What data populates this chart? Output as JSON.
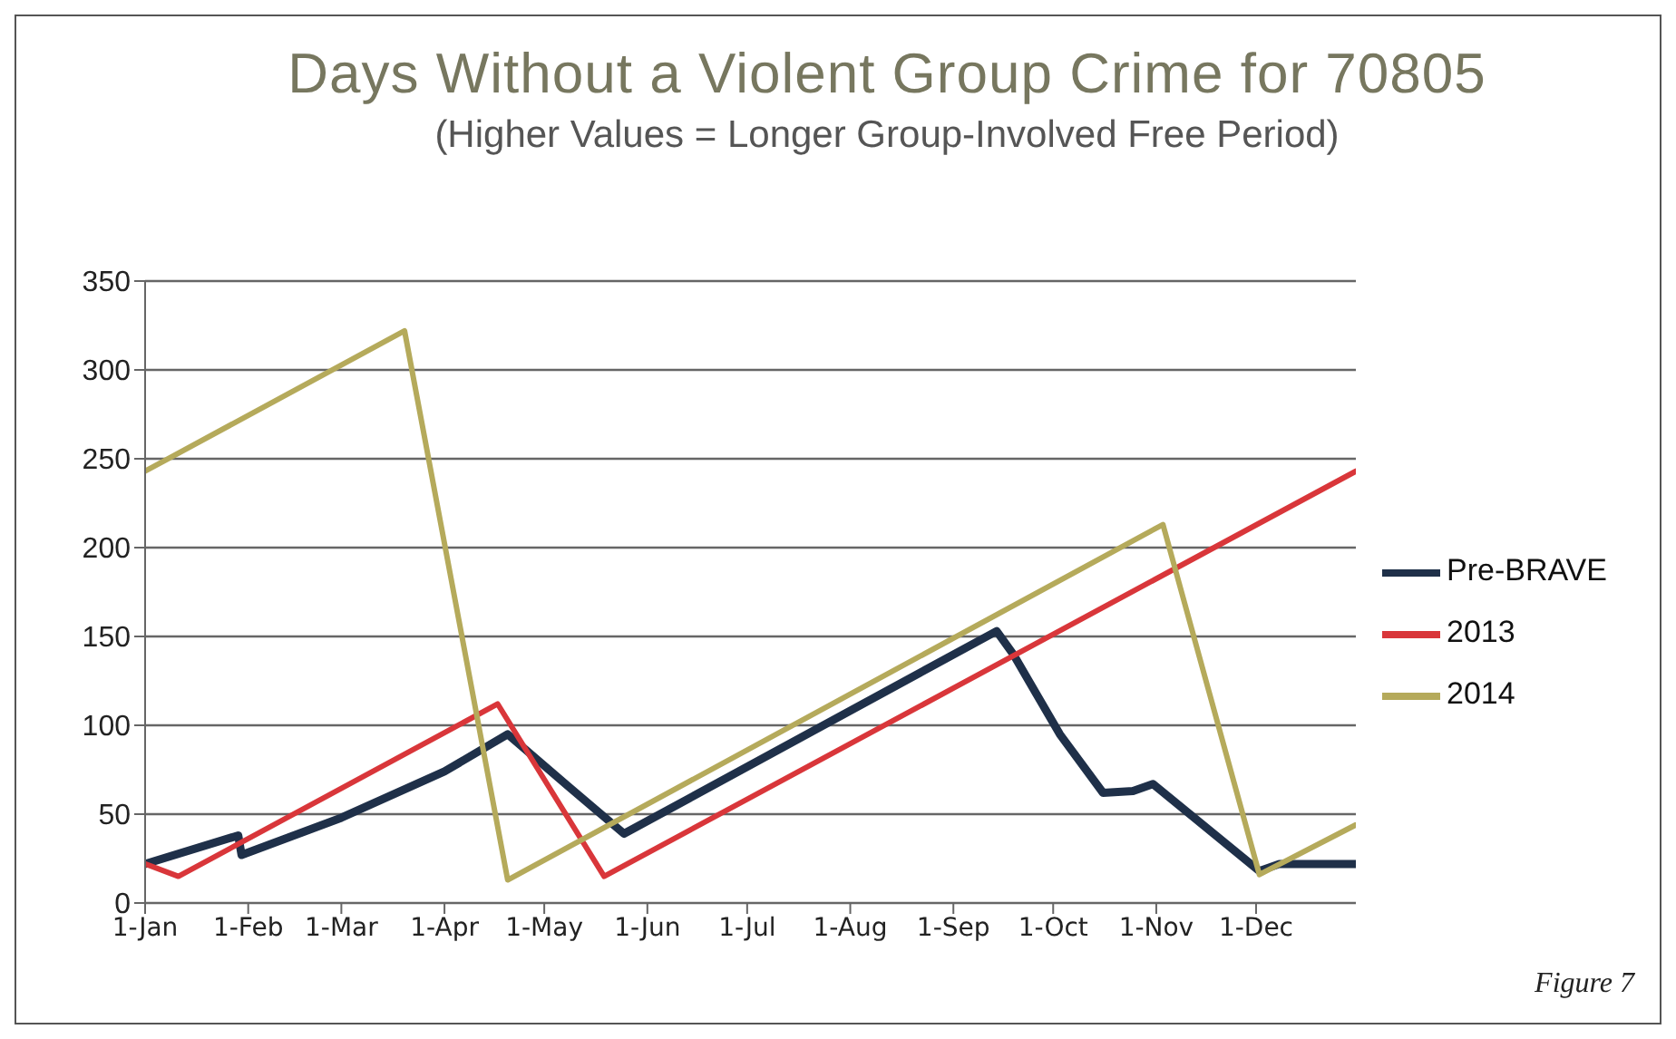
{
  "chart_data": {
    "type": "line",
    "title": "Days Without a Violent Group Crime for 70805",
    "subtitle": "(Higher Values = Longer Group-Involved Free Period)",
    "annotations": [
      "Figure 7"
    ],
    "xlim": [
      "--01-01",
      "--12-31"
    ],
    "xticks": [
      {
        "value": "--01-01",
        "label": "1-Jan"
      },
      {
        "value": "--02-01",
        "label": "1-Feb"
      },
      {
        "value": "--03-01",
        "label": "1-Mar"
      },
      {
        "value": "--04-01",
        "label": "1-Apr"
      },
      {
        "value": "--05-01",
        "label": "1-May"
      },
      {
        "value": "--06-01",
        "label": "1-Jun"
      },
      {
        "value": "--07-01",
        "label": "1-Jul"
      },
      {
        "value": "--08-01",
        "label": "1-Aug"
      },
      {
        "value": "--09-01",
        "label": "1-Sep"
      },
      {
        "value": "--10-01",
        "label": "1-Oct"
      },
      {
        "value": "--11-01",
        "label": "1-Nov"
      },
      {
        "value": "--12-01",
        "label": "1-Dec"
      }
    ],
    "ylim": [
      0,
      350
    ],
    "yticks": [
      0,
      50,
      100,
      150,
      200,
      250,
      300,
      350
    ],
    "grid": "y",
    "legend": "right",
    "marker": "none",
    "series": [
      {
        "name": "Pre-BRAVE",
        "color": "#1f3049",
        "x": [
          "--01-01",
          "--01-29",
          "--01-30",
          "--03-01",
          "--04-01",
          "--04-20",
          "--05-08",
          "--05-25",
          "--09-14",
          "--09-19",
          "--10-03",
          "--10-16",
          "--10-25",
          "--10-31",
          "--12-02",
          "--12-08",
          "--12-31"
        ],
        "values": [
          22,
          38,
          27,
          48,
          74,
          95,
          66,
          39,
          153,
          140,
          95,
          62,
          63,
          67,
          18,
          22,
          22
        ]
      },
      {
        "name": "2013",
        "color": "#d9363a",
        "x": [
          "--01-01",
          "--01-11",
          "--04-17",
          "--05-19",
          "--12-31"
        ],
        "values": [
          22,
          15,
          112,
          15,
          243
        ]
      },
      {
        "name": "2014",
        "color": "#b5aa5b",
        "x": [
          "--01-01",
          "--03-20",
          "--04-20",
          "--11-03",
          "--12-02",
          "--12-31"
        ],
        "values": [
          243,
          322,
          13,
          213,
          16,
          44
        ]
      }
    ]
  }
}
